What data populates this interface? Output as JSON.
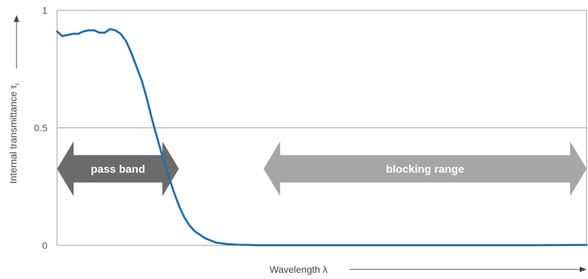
{
  "chart_data": {
    "type": "line",
    "title": "",
    "xlabel": "Wavelength λ",
    "ylabel": "Internal transmittance τ",
    "ylabel_subscript": "i",
    "ylim": [
      0,
      1
    ],
    "yticks": [
      "0",
      "0.5",
      "1"
    ],
    "grid": "horizontal",
    "series": [
      {
        "color": "#1f6fb5",
        "x": [
          0,
          0.01,
          0.02,
          0.03,
          0.04,
          0.05,
          0.06,
          0.07,
          0.08,
          0.09,
          0.1,
          0.11,
          0.12,
          0.13,
          0.14,
          0.15,
          0.16,
          0.17,
          0.18,
          0.19,
          0.2,
          0.21,
          0.22,
          0.23,
          0.24,
          0.25,
          0.26,
          0.28,
          0.3,
          0.32,
          0.34,
          0.36,
          0.38,
          0.4,
          0.45,
          0.5,
          0.6,
          0.7,
          0.8,
          0.9,
          1.0
        ],
        "y": [
          0.91,
          0.89,
          0.895,
          0.9,
          0.9,
          0.91,
          0.915,
          0.915,
          0.905,
          0.905,
          0.92,
          0.915,
          0.9,
          0.87,
          0.82,
          0.76,
          0.7,
          0.62,
          0.53,
          0.45,
          0.37,
          0.3,
          0.23,
          0.17,
          0.12,
          0.085,
          0.06,
          0.03,
          0.012,
          0.006,
          0.003,
          0.002,
          0.001,
          0.001,
          0.001,
          0.001,
          0.001,
          0.001,
          0.001,
          0.001,
          0.002
        ]
      }
    ],
    "annotations": [
      {
        "label": "pass band",
        "x_start": 0,
        "x_end": 0.23,
        "y": 0.32,
        "color": "#6b6b6b"
      },
      {
        "label": "blocking range",
        "x_start": 0.39,
        "x_end": 1.0,
        "y": 0.32,
        "color": "#a6a6a6"
      }
    ]
  }
}
